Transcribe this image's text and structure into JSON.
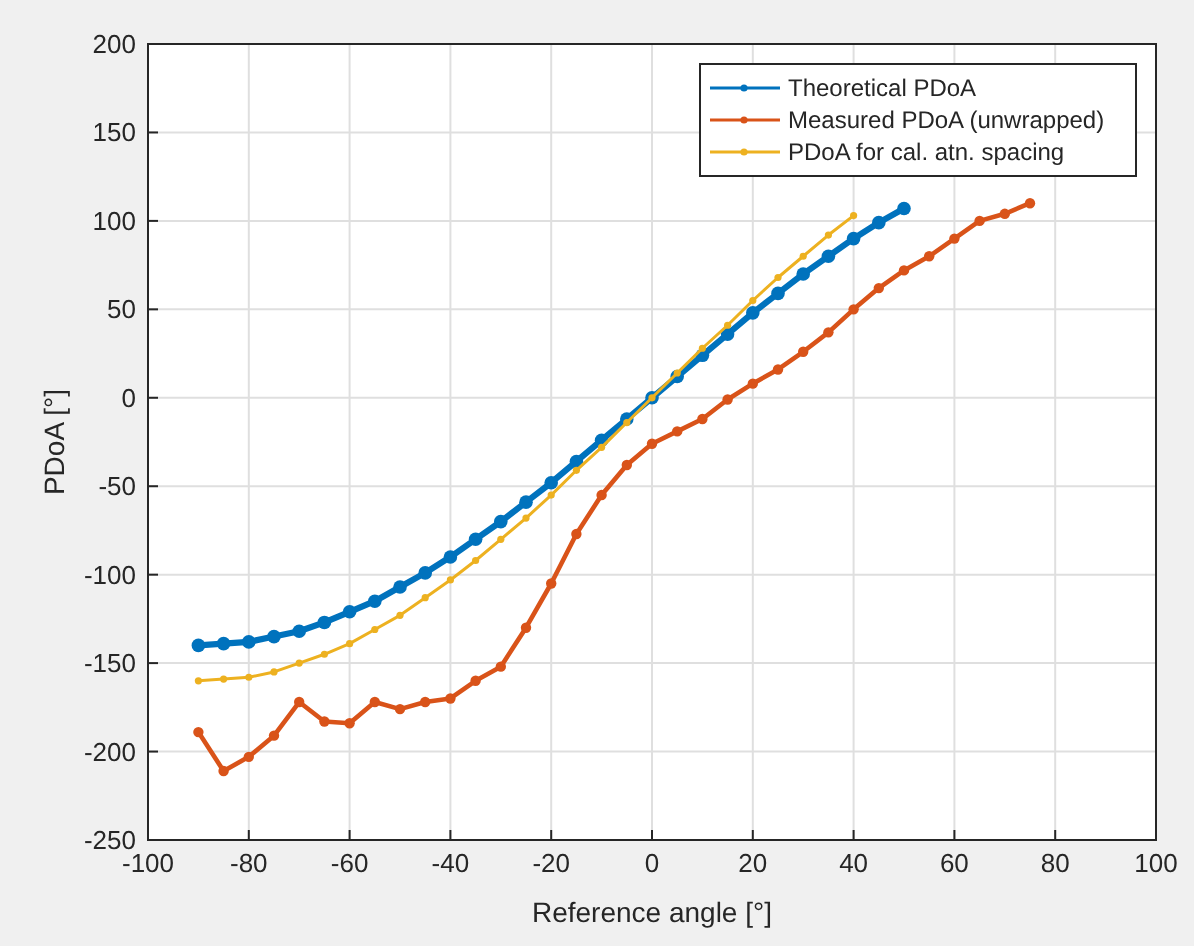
{
  "chart_data": {
    "type": "line",
    "xlabel": "Reference angle [°]",
    "ylabel": "PDoA [°]",
    "x": [
      -90,
      -85,
      -80,
      -75,
      -70,
      -65,
      -60,
      -55,
      -50,
      -45,
      -40,
      -35,
      -30,
      -25,
      -20,
      -15,
      -10,
      -5,
      0,
      5,
      10,
      15,
      20,
      25,
      30,
      35,
      40,
      45,
      50,
      55,
      60,
      65,
      70,
      75
    ],
    "series": [
      {
        "name": "Theoretical PDoA",
        "color": "#0072bd",
        "values": [
          -140,
          -139,
          -138,
          -135,
          -132,
          -127,
          -121,
          -115,
          -107,
          -99,
          -90,
          -80,
          -70,
          -59,
          -48,
          -36,
          -24,
          -12,
          0,
          12,
          24,
          36,
          48,
          59,
          70,
          80,
          90,
          99,
          107,
          null,
          null,
          null,
          null,
          null
        ]
      },
      {
        "name": "Measured PDoA (unwrapped)",
        "color": "#d95319",
        "values": [
          -189,
          -211,
          -203,
          -191,
          -172,
          -183,
          -184,
          -172,
          -176,
          -172,
          -170,
          -160,
          -152,
          -130,
          -105,
          -77,
          -55,
          -38,
          -26,
          -19,
          -12,
          -1,
          8,
          16,
          26,
          37,
          50,
          62,
          72,
          80,
          90,
          100,
          104,
          110
        ]
      },
      {
        "name": "PDoA for cal. atn. spacing",
        "color": "#edb120",
        "values": [
          -160,
          -159,
          -158,
          -155,
          -150,
          -145,
          -139,
          -131,
          -123,
          -113,
          -103,
          -92,
          -80,
          -68,
          -55,
          -41,
          -28,
          -14,
          0,
          14,
          28,
          41,
          55,
          68,
          80,
          92,
          103,
          null,
          null,
          null,
          null,
          null,
          null,
          null
        ]
      }
    ],
    "xlim": [
      -100,
      100
    ],
    "xticks": [
      -100,
      -80,
      -60,
      -40,
      -20,
      0,
      20,
      40,
      60,
      80,
      100
    ],
    "ylim": [
      -250,
      200
    ],
    "yticks": [
      -250,
      -200,
      -150,
      -100,
      -50,
      0,
      50,
      100,
      150,
      200
    ],
    "grid": true,
    "legend": "top right",
    "marker": "circle",
    "line_style": "solid"
  }
}
